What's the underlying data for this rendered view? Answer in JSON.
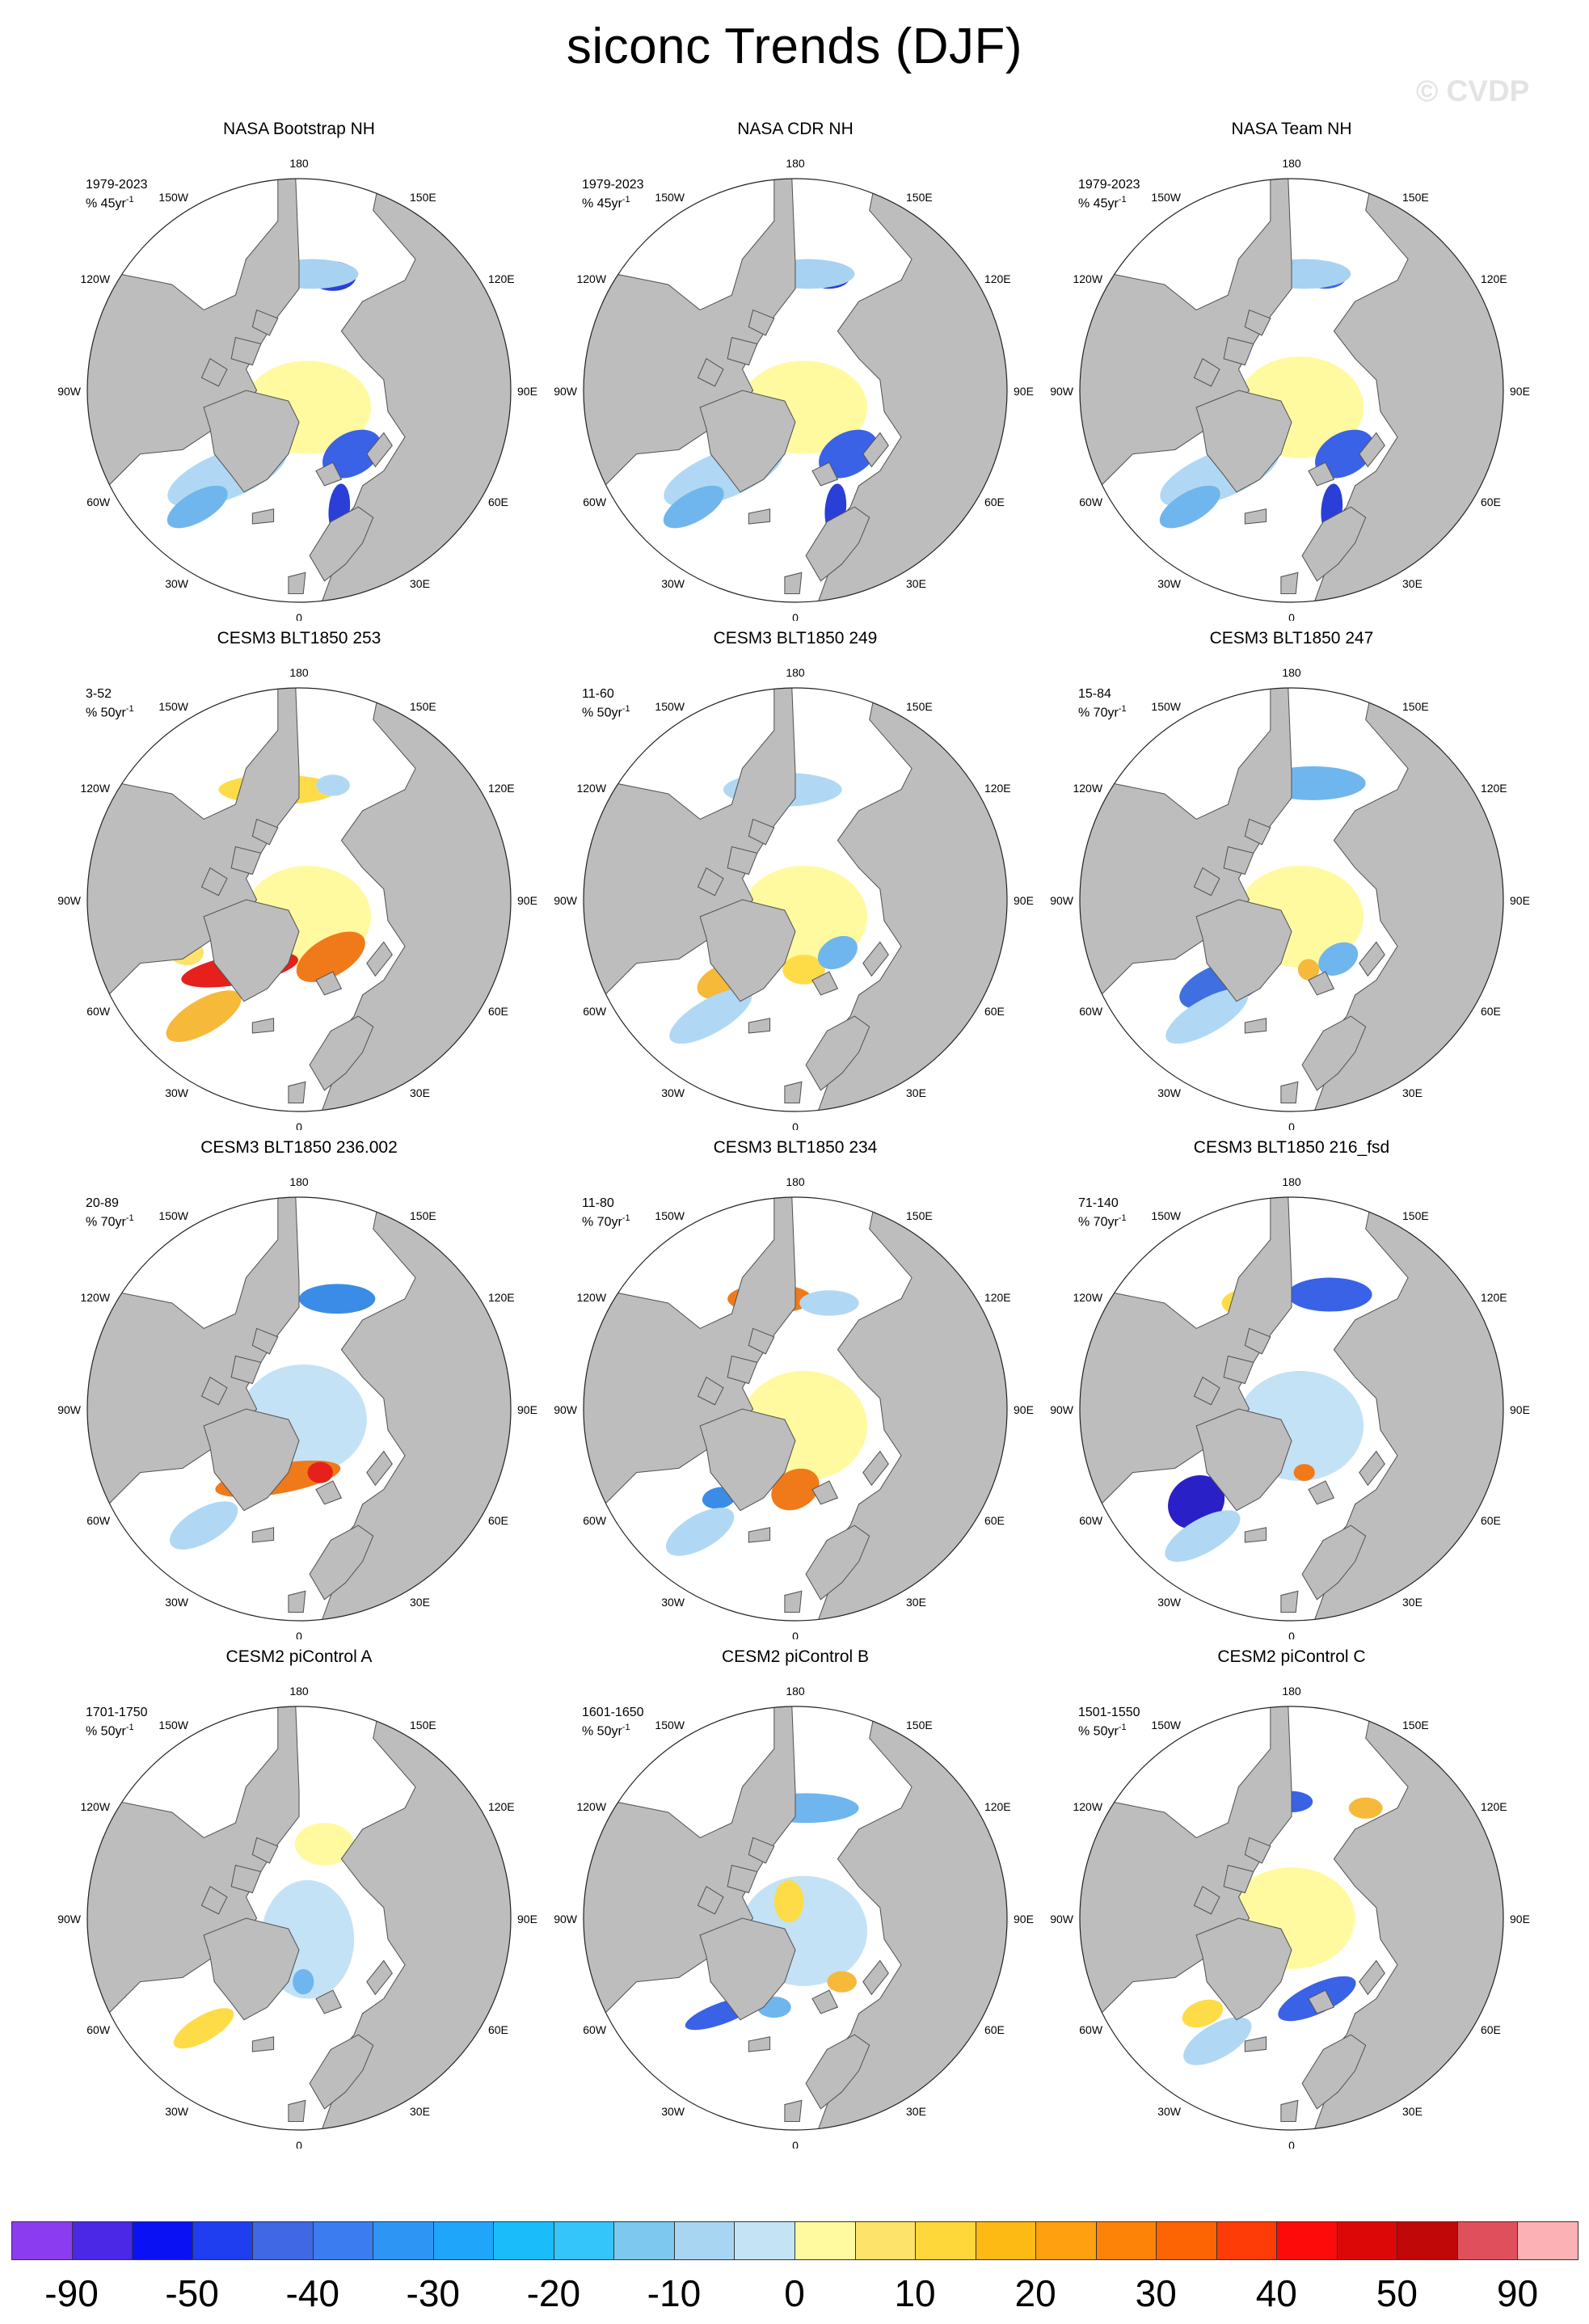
{
  "figure": {
    "title": "siconc Trends (DJF)",
    "watermark": "© CVDP"
  },
  "map_labels": {
    "deg180": "180",
    "deg150W": "150W",
    "deg150E": "150E",
    "deg120W": "120W",
    "deg120E": "120E",
    "deg90W": "90W",
    "deg90E": "90E",
    "deg60W": "60W",
    "deg60E": "60E",
    "deg30W": "30W",
    "deg30E": "30E",
    "deg0": "0"
  },
  "colors": {
    "land": "#bdbdbd",
    "ocean": "#ffffff",
    "border": "#555555"
  },
  "panels": [
    {
      "title": "NASA Bootstrap NH",
      "period": "1979-2023",
      "units": "% 45yr",
      "exponent": "-1",
      "patches": [
        [
          "#fffaa0",
          0.04,
          0.08,
          0.3,
          0.22,
          0
        ],
        [
          "#b0d8f4",
          -0.34,
          0.4,
          0.3,
          0.11,
          -22
        ],
        [
          "#6fb6ee",
          -0.48,
          0.55,
          0.16,
          0.07,
          -30
        ],
        [
          "#3a62e6",
          0.25,
          0.3,
          0.15,
          0.1,
          -30
        ],
        [
          "#2a3ed8",
          0.16,
          -0.54,
          0.11,
          0.07,
          0
        ],
        [
          "#a8d2f2",
          0.06,
          -0.55,
          0.22,
          0.07,
          0
        ],
        [
          "#2a3ed8",
          0.19,
          0.56,
          0.05,
          0.12,
          5
        ]
      ]
    },
    {
      "title": "NASA CDR NH",
      "period": "1979-2023",
      "units": "% 45yr",
      "exponent": "-1",
      "patches": [
        [
          "#fffaa0",
          0.04,
          0.08,
          0.3,
          0.22,
          0
        ],
        [
          "#b0d8f4",
          -0.34,
          0.4,
          0.3,
          0.11,
          -22
        ],
        [
          "#6fb6ee",
          -0.48,
          0.55,
          0.16,
          0.07,
          -30
        ],
        [
          "#3a62e6",
          0.25,
          0.3,
          0.15,
          0.1,
          -30
        ],
        [
          "#2a3ed8",
          0.16,
          -0.54,
          0.1,
          0.06,
          0
        ],
        [
          "#a8d2f2",
          0.06,
          -0.55,
          0.22,
          0.07,
          0
        ],
        [
          "#2a3ed8",
          0.19,
          0.56,
          0.05,
          0.12,
          5
        ]
      ]
    },
    {
      "title": "NASA Team NH",
      "period": "1979-2023",
      "units": "% 45yr",
      "exponent": "-1",
      "patches": [
        [
          "#fffaa0",
          0.04,
          0.08,
          0.3,
          0.24,
          0
        ],
        [
          "#b0d8f4",
          -0.34,
          0.4,
          0.3,
          0.11,
          -22
        ],
        [
          "#6fb6ee",
          -0.48,
          0.55,
          0.16,
          0.07,
          -30
        ],
        [
          "#3a62e6",
          0.25,
          0.3,
          0.15,
          0.1,
          -30
        ],
        [
          "#3a62e6",
          0.16,
          -0.54,
          0.1,
          0.06,
          0
        ],
        [
          "#a8d2f2",
          0.06,
          -0.55,
          0.22,
          0.07,
          0
        ],
        [
          "#2a3ed8",
          0.19,
          0.56,
          0.05,
          0.12,
          5
        ]
      ]
    },
    {
      "title": "CESM3 BLT1850 253",
      "period": "3-52",
      "units": "% 50yr",
      "exponent": "-1",
      "patches": [
        [
          "#fffaa0",
          0.04,
          0.08,
          0.3,
          0.24,
          0
        ],
        [
          "#fee36b",
          -0.53,
          0.25,
          0.08,
          0.06,
          0
        ],
        [
          "#e6201a",
          -0.28,
          0.33,
          0.28,
          0.07,
          -10
        ],
        [
          "#f07a19",
          0.15,
          0.27,
          0.18,
          0.09,
          -30
        ],
        [
          "#f6b93a",
          -0.45,
          0.55,
          0.2,
          0.08,
          -30
        ],
        [
          "#fedc48",
          -0.1,
          -0.52,
          0.28,
          0.07,
          0
        ],
        [
          "#b0d8f4",
          0.16,
          -0.54,
          0.08,
          0.05,
          0
        ]
      ]
    },
    {
      "title": "CESM3 BLT1850 249",
      "period": "11-60",
      "units": "% 50yr",
      "exponent": "-1",
      "patches": [
        [
          "#fffaa0",
          0.04,
          0.08,
          0.3,
          0.24,
          0
        ],
        [
          "#b0d8f4",
          -0.06,
          -0.52,
          0.28,
          0.08,
          0
        ],
        [
          "#f6b93a",
          -0.32,
          0.38,
          0.15,
          0.08,
          -20
        ],
        [
          "#fedc48",
          0.04,
          0.33,
          0.1,
          0.07,
          0
        ],
        [
          "#6fb6ee",
          0.2,
          0.25,
          0.1,
          0.07,
          -30
        ],
        [
          "#b0d8f4",
          -0.4,
          0.55,
          0.22,
          0.08,
          -30
        ]
      ]
    },
    {
      "title": "CESM3 BLT1850 247",
      "period": "15-84",
      "units": "% 70yr",
      "exponent": "-1",
      "patches": [
        [
          "#fffaa0",
          0.04,
          0.08,
          0.3,
          0.24,
          0
        ],
        [
          "#6fb6ee",
          0.1,
          -0.55,
          0.25,
          0.08,
          0
        ],
        [
          "#3f6fe0",
          -0.32,
          0.4,
          0.22,
          0.1,
          -20
        ],
        [
          "#f6b93a",
          0.08,
          0.33,
          0.05,
          0.05,
          0
        ],
        [
          "#6fb6ee",
          0.22,
          0.28,
          0.1,
          0.07,
          -30
        ],
        [
          "#b0d8f4",
          -0.4,
          0.55,
          0.22,
          0.08,
          -30
        ]
      ]
    },
    {
      "title": "CESM3 BLT1850 236.002",
      "period": "20-89",
      "units": "% 70yr",
      "exponent": "-1",
      "patches": [
        [
          "#c4e2f6",
          0.02,
          0.05,
          0.3,
          0.26,
          0
        ],
        [
          "#f6b93a",
          -0.12,
          -0.5,
          0.12,
          0.07,
          0
        ],
        [
          "#3a8ce6",
          0.18,
          -0.52,
          0.18,
          0.07,
          0
        ],
        [
          "#f07a19",
          -0.1,
          0.33,
          0.3,
          0.07,
          -10
        ],
        [
          "#e6201a",
          0.1,
          0.3,
          0.06,
          0.05,
          0
        ],
        [
          "#b0d8f4",
          -0.45,
          0.55,
          0.18,
          0.08,
          -30
        ]
      ]
    },
    {
      "title": "CESM3 BLT1850 234",
      "period": "11-80",
      "units": "% 70yr",
      "exponent": "-1",
      "patches": [
        [
          "#fffaa0",
          0.04,
          0.08,
          0.3,
          0.26,
          0
        ],
        [
          "#f07a19",
          -0.12,
          -0.52,
          0.2,
          0.07,
          0
        ],
        [
          "#b0d8f4",
          0.16,
          -0.5,
          0.14,
          0.06,
          0
        ],
        [
          "#f07a19",
          0.0,
          0.38,
          0.12,
          0.09,
          -30
        ],
        [
          "#3a8ce6",
          -0.36,
          0.42,
          0.08,
          0.05,
          -10
        ],
        [
          "#b0d8f4",
          -0.45,
          0.58,
          0.18,
          0.08,
          -30
        ]
      ]
    },
    {
      "title": "CESM3 BLT1850 216_fsd",
      "period": "71-140",
      "units": "% 70yr",
      "exponent": "-1",
      "patches": [
        [
          "#c4e2f6",
          0.04,
          0.08,
          0.3,
          0.26,
          0
        ],
        [
          "#fedc48",
          -0.18,
          -0.5,
          0.15,
          0.07,
          0
        ],
        [
          "#3a62e6",
          0.18,
          -0.54,
          0.2,
          0.08,
          0
        ],
        [
          "#2a20c8",
          -0.45,
          0.44,
          0.14,
          0.12,
          -35
        ],
        [
          "#f07a19",
          0.06,
          0.3,
          0.05,
          0.04,
          0
        ],
        [
          "#b0d8f4",
          -0.42,
          0.6,
          0.2,
          0.08,
          -30
        ]
      ]
    },
    {
      "title": "CESM2 piControl A",
      "period": "1701-1750",
      "units": "% 50yr",
      "exponent": "-1",
      "patches": [
        [
          "#c4e2f6",
          0.04,
          0.1,
          0.22,
          0.28,
          0
        ],
        [
          "#fffaa0",
          0.12,
          -0.35,
          0.14,
          0.1,
          0
        ],
        [
          "#f6b93a",
          -0.08,
          -0.54,
          0.07,
          0.05,
          0
        ],
        [
          "#fedc48",
          -0.45,
          0.05,
          0.06,
          0.08,
          0
        ],
        [
          "#6fb6ee",
          0.02,
          0.3,
          0.05,
          0.06,
          0
        ],
        [
          "#fedc48",
          -0.45,
          0.52,
          0.16,
          0.06,
          -30
        ]
      ]
    },
    {
      "title": "CESM2 piControl B",
      "period": "1601-1650",
      "units": "% 50yr",
      "exponent": "-1",
      "patches": [
        [
          "#c4e2f6",
          0.04,
          0.06,
          0.3,
          0.26,
          0
        ],
        [
          "#fedc48",
          -0.03,
          -0.08,
          0.07,
          0.1,
          0
        ],
        [
          "#6fb6ee",
          0.05,
          -0.52,
          0.25,
          0.07,
          0
        ],
        [
          "#3a62e6",
          -0.35,
          0.45,
          0.18,
          0.05,
          -20
        ],
        [
          "#f6b93a",
          0.22,
          0.3,
          0.07,
          0.05,
          0
        ],
        [
          "#6fb6ee",
          -0.1,
          0.42,
          0.08,
          0.05,
          0
        ]
      ]
    },
    {
      "title": "CESM2 piControl C",
      "period": "1501-1550",
      "units": "% 50yr",
      "exponent": "-1",
      "patches": [
        [
          "#fffaa0",
          0.0,
          0.0,
          0.3,
          0.24,
          0
        ],
        [
          "#3a62e6",
          0.0,
          -0.55,
          0.1,
          0.05,
          0
        ],
        [
          "#f6b93a",
          0.35,
          -0.52,
          0.08,
          0.05,
          0
        ],
        [
          "#fedc48",
          -0.48,
          0.05,
          0.07,
          0.08,
          0
        ],
        [
          "#3a62e6",
          0.12,
          0.38,
          0.2,
          0.07,
          -25
        ],
        [
          "#fedc48",
          -0.42,
          0.45,
          0.1,
          0.06,
          -20
        ],
        [
          "#b0d8f4",
          -0.35,
          0.58,
          0.18,
          0.08,
          -30
        ]
      ]
    }
  ],
  "colorbar": {
    "colors": [
      "#8c3cf0",
      "#4a28e6",
      "#0a12f4",
      "#1e3ef0",
      "#4068e4",
      "#3b7df0",
      "#2d96f5",
      "#1fa6fa",
      "#1abcfa",
      "#34c6fa",
      "#7cc8ee",
      "#a8d6f2",
      "#c4e4f6",
      "#fffaa0",
      "#fee36b",
      "#fed73a",
      "#feba14",
      "#fea010",
      "#fd8208",
      "#fd6404",
      "#fe3c08",
      "#fd0a0a",
      "#dc0808",
      "#c00808",
      "#e0505c",
      "#fcb2b4"
    ],
    "labels": [
      "-90",
      "-50",
      "-40",
      "-30",
      "-20",
      "-10",
      "0",
      "10",
      "20",
      "30",
      "40",
      "50",
      "90"
    ]
  }
}
